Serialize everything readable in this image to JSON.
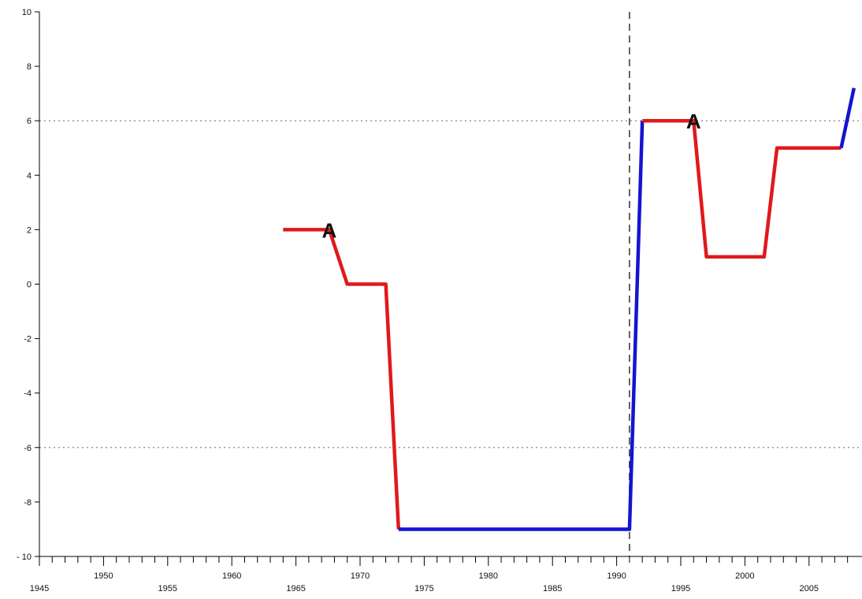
{
  "chart_data": {
    "type": "line",
    "title": "",
    "xlabel": "",
    "ylabel": "",
    "xlim": [
      1945,
      2008
    ],
    "ylim": [
      -10,
      10
    ],
    "grid": false,
    "x_ticks_top_row": [
      "1950",
      "1960",
      "1970",
      "1980",
      "1990",
      "2000"
    ],
    "x_ticks_bottom_row": [
      "1945",
      "1955",
      "1965",
      "1975",
      "1985",
      "1995",
      "2005"
    ],
    "y_ticks": [
      "10",
      "8",
      "6",
      "4",
      "2",
      "0",
      "-2",
      "-4",
      "-6",
      "-8",
      "- 10"
    ],
    "reference_lines": [
      {
        "axis": "y",
        "value": 6,
        "style": "dotted",
        "color": "#777777"
      },
      {
        "axis": "y",
        "value": -6,
        "style": "dotted",
        "color": "#777777"
      },
      {
        "axis": "x",
        "value": 1991,
        "style": "dashed",
        "color": "#333333"
      }
    ],
    "series": [
      {
        "color": "#e0191b",
        "points": [
          [
            1964,
            2
          ],
          [
            1967.6,
            2
          ],
          [
            1969,
            0
          ],
          [
            1972,
            0
          ],
          [
            1973,
            -9
          ]
        ]
      },
      {
        "color": "#1414d0",
        "points": [
          [
            1973,
            -9
          ],
          [
            1991,
            -9
          ],
          [
            1992,
            6
          ]
        ]
      },
      {
        "color": "#e0191b",
        "points": [
          [
            1992,
            6
          ],
          [
            1996,
            6
          ],
          [
            1997,
            1
          ],
          [
            2001.5,
            1
          ],
          [
            2002.5,
            5
          ],
          [
            2007.5,
            5
          ]
        ]
      },
      {
        "color": "#1414d0",
        "points": [
          [
            2007.5,
            5
          ],
          [
            2008.5,
            7.2
          ]
        ]
      }
    ],
    "annotations": [
      {
        "text": "A",
        "x": 1967.6,
        "y": 2
      },
      {
        "text": "A",
        "x": 1996,
        "y": 6
      }
    ]
  }
}
